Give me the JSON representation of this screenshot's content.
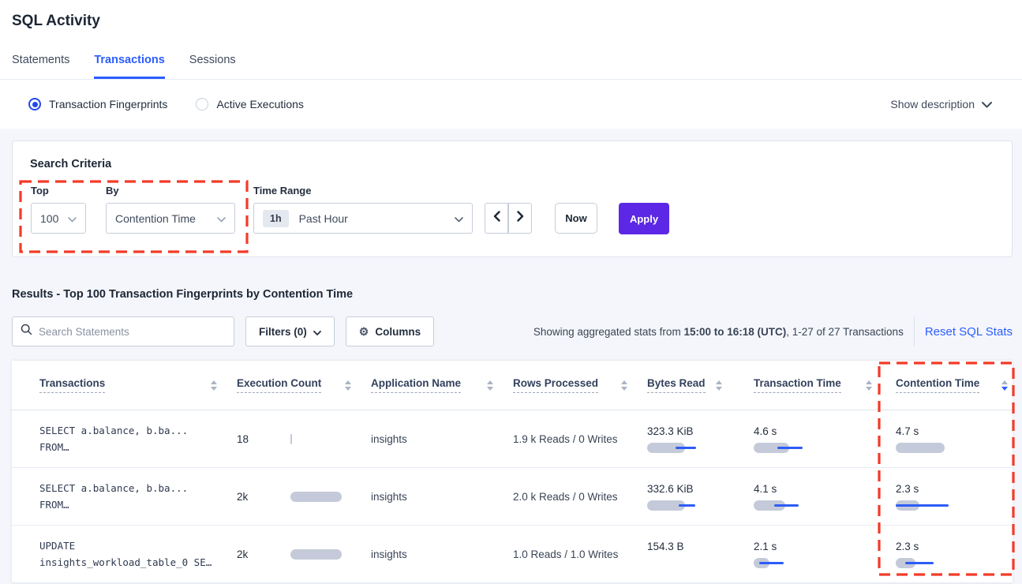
{
  "page": {
    "title": "SQL Activity"
  },
  "tabs": [
    {
      "label": "Statements",
      "active": false
    },
    {
      "label": "Transactions",
      "active": true
    },
    {
      "label": "Sessions",
      "active": false
    }
  ],
  "view_options": {
    "radios": [
      {
        "label": "Transaction Fingerprints",
        "selected": true
      },
      {
        "label": "Active Executions",
        "selected": false
      }
    ],
    "show_description": "Show description"
  },
  "search_criteria": {
    "heading": "Search Criteria",
    "top": {
      "label": "Top",
      "value": "100"
    },
    "by": {
      "label": "By",
      "value": "Contention Time"
    },
    "time_range": {
      "label": "Time Range",
      "badge": "1h",
      "value": "Past Hour"
    },
    "now_label": "Now",
    "apply_label": "Apply"
  },
  "results": {
    "heading": "Results - Top 100 Transaction Fingerprints by Contention Time",
    "search_placeholder": "Search Statements",
    "filters_label": "Filters (0)",
    "columns_label": "Columns",
    "stats_prefix": "Showing aggregated stats from ",
    "stats_bold": "15:00 to 16:18 (UTC)",
    "stats_suffix": ", 1-27 of 27 Transactions",
    "reset_label": "Reset SQL Stats"
  },
  "icons": {
    "gear_glyph": "⚙"
  },
  "table": {
    "columns": [
      "Transactions",
      "Execution Count",
      "Application Name",
      "Rows Processed",
      "Bytes Read",
      "Transaction Time",
      "Contention Time"
    ],
    "sort": {
      "column": "Contention Time",
      "direction": "desc"
    },
    "rows": [
      {
        "query_line1": "SELECT a.balance, b.ba...",
        "query_line2": "FROM…",
        "execution_count": "18",
        "application_name": "insights",
        "rows_processed": "1.9 k Reads / 0 Writes",
        "bytes_read": "323.3 KiB",
        "transaction_time": "4.6 s",
        "contention_time": "4.7 s",
        "meters": {
          "exec": {
            "bar": 2
          },
          "bytes": {
            "bar": 48,
            "line": [
              36,
              62
            ]
          },
          "txn": {
            "bar": 45,
            "line": [
              30,
              62
            ]
          },
          "cont": {
            "bar": 62
          }
        }
      },
      {
        "query_line1": "SELECT a.balance, b.ba...",
        "query_line2": "FROM…",
        "execution_count": "2k",
        "application_name": "insights",
        "rows_processed": "2.0 k Reads / 0 Writes",
        "bytes_read": "332.6 KiB",
        "transaction_time": "4.1 s",
        "contention_time": "2.3 s",
        "meters": {
          "exec": {
            "bar": 65
          },
          "bytes": {
            "bar": 48,
            "line": [
              40,
              61
            ]
          },
          "txn": {
            "bar": 40,
            "line": [
              26,
              57
            ]
          },
          "cont": {
            "bar": 30,
            "line": [
              0,
              67
            ]
          }
        }
      },
      {
        "query_line1": "UPDATE",
        "query_line2": "insights_workload_table_0 SE…",
        "execution_count": "2k",
        "application_name": "insights",
        "rows_processed": "1.0 Reads / 1.0 Writes",
        "bytes_read": "154.3 B",
        "transaction_time": "2.1 s",
        "contention_time": "2.3 s",
        "meters": {
          "exec": {
            "bar": 65
          },
          "txn": {
            "bar": 20,
            "line": [
              7,
              38
            ]
          },
          "cont": {
            "bar": 25,
            "line": [
              12,
              48
            ]
          }
        }
      }
    ]
  },
  "colors": {
    "accent_blue": "#2b5dff",
    "apply_purple": "#5c28e6",
    "highlight_red": "#f23b28",
    "bar_gray": "#c4cad9",
    "bar_line_blue": "#2d5cf6"
  }
}
